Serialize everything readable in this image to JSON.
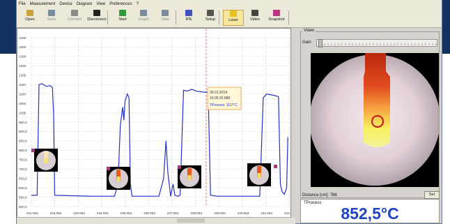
{
  "menu": [
    "File",
    "Measurement",
    "Device",
    "Diagram",
    "View",
    "Preferences",
    "?"
  ],
  "toolbar": [
    {
      "label": "Open",
      "icon": "open-icon",
      "color": "#c9a13b",
      "state": "normal"
    },
    {
      "label": "Save",
      "icon": "save-icon",
      "color": "#7a8aa0",
      "state": "disabled"
    },
    {
      "label": "Connect",
      "icon": "connect-icon",
      "color": "#8a8a8a",
      "state": "disabled"
    },
    {
      "label": "Disconnect",
      "icon": "disconnect-icon",
      "color": "#222222",
      "state": "normal"
    },
    {
      "label": "Start",
      "icon": "start-icon",
      "color": "#2a9a3a",
      "state": "normal"
    },
    {
      "label": "Graph",
      "icon": "graph-icon",
      "color": "#7a8aa0",
      "state": "disabled"
    },
    {
      "label": "View",
      "icon": "view-icon",
      "color": "#7a8aa0",
      "state": "disabled"
    },
    {
      "label": "IPE",
      "icon": "ipe-icon",
      "color": "#4050c0",
      "state": "normal"
    },
    {
      "label": "Setup",
      "icon": "setup-icon",
      "color": "#555555",
      "state": "normal"
    },
    {
      "label": "Laser",
      "icon": "laser-icon",
      "color": "#e8c020",
      "state": "active"
    },
    {
      "label": "Video",
      "icon": "video-icon",
      "color": "#444444",
      "state": "normal"
    },
    {
      "label": "Snapshot",
      "icon": "snapshot-icon",
      "color": "#c03080",
      "state": "normal"
    }
  ],
  "chart_data": {
    "type": "line",
    "y_ticks": [
      "1400",
      "1350",
      "1300",
      "1250",
      "1200",
      "1150",
      "1100",
      "1050",
      "1000",
      "950,0",
      "900,0",
      "850,0",
      "800,0",
      "750,0",
      "700,0",
      "650,0",
      "600,0",
      "550,0",
      "500,0"
    ],
    "x_ticks": [
      "231:053",
      "232:053",
      "233:053",
      "234:053",
      "235:053",
      "236:053",
      "237:053",
      "238:053",
      "239:053",
      "240:053",
      "241:053",
      "242:053"
    ],
    "series": [
      {
        "color": "#2430c8"
      }
    ],
    "tooltip": {
      "date": "30.01.2014",
      "time": "16:05:30.888",
      "value": "TProcess: 1117°C"
    }
  },
  "video_panel": {
    "title": "Video",
    "gain_label": "Gain",
    "distance_label": "Distance [cm]:",
    "distance_value": "786",
    "set_button": "Set"
  },
  "tprocess_panel": {
    "label": "TProcess",
    "value": "852,5°C"
  }
}
